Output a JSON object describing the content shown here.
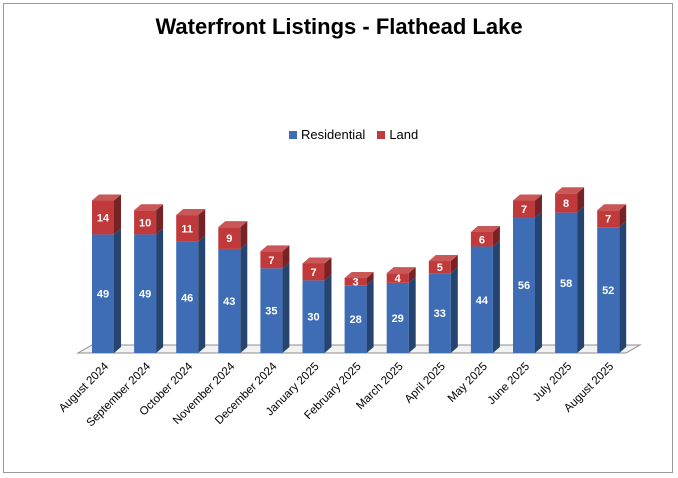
{
  "chart_data": {
    "type": "bar",
    "stacked": true,
    "three_d": true,
    "title": "Waterfront Listings - Flathead Lake",
    "categories": [
      "August 2024",
      "September 2024",
      "October 2024",
      "November 2024",
      "December 2024",
      "January 2025",
      "February 2025",
      "March 2025",
      "April 2025",
      "May 2025",
      "June 2025",
      "July 2025",
      "August 2025"
    ],
    "series": [
      {
        "name": "Residential",
        "color": "#3E6DB5",
        "values": [
          49,
          49,
          46,
          43,
          35,
          30,
          28,
          29,
          33,
          44,
          56,
          58,
          52
        ]
      },
      {
        "name": "Land",
        "color": "#C0393B",
        "values": [
          14,
          10,
          11,
          9,
          7,
          7,
          3,
          4,
          5,
          6,
          7,
          8,
          7
        ]
      }
    ],
    "legend_position": "top-center",
    "grid": false,
    "ylim": [
      0,
      70
    ]
  }
}
